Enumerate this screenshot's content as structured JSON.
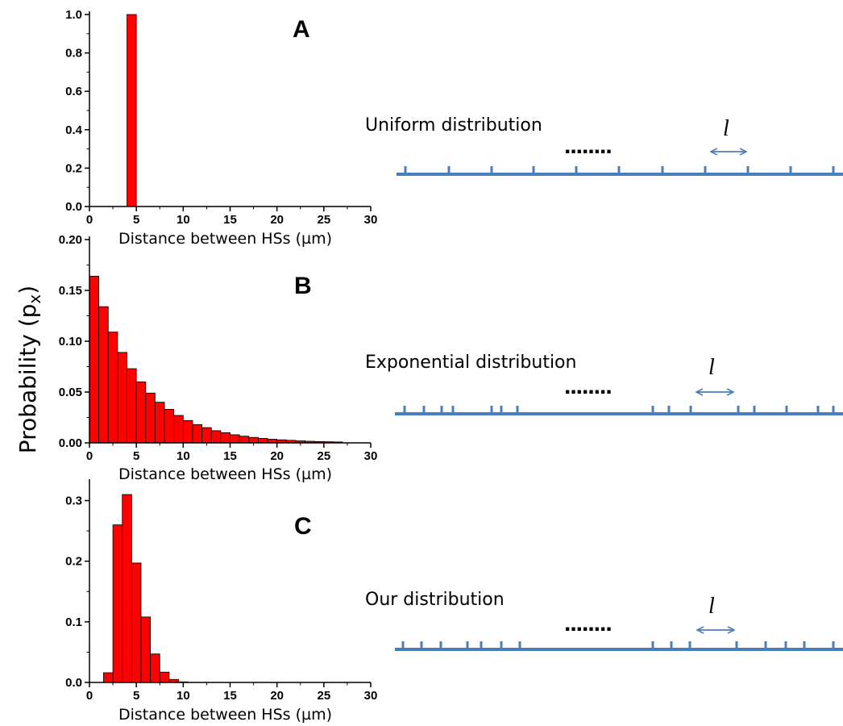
{
  "ylabel_main": "Probability (p",
  "ylabel_sub": "x",
  "ylabel_close": ")",
  "chart_data": [
    {
      "type": "bar",
      "panel": "A",
      "xlabel": "Distance between HSs (µm)",
      "xlim": [
        0,
        30
      ],
      "ylim": [
        0,
        1.0
      ],
      "xticks": [
        0,
        5,
        10,
        15,
        20,
        25,
        30
      ],
      "yticks": [
        0.0,
        0.2,
        0.4,
        0.6,
        0.8,
        1.0
      ],
      "ytick_labels": [
        "0.0",
        "0.2",
        "0.4",
        "0.6",
        "0.8",
        "1.0"
      ],
      "bin_width": 1,
      "bins": [
        {
          "x": 4.5,
          "y": 1.0
        }
      ]
    },
    {
      "type": "bar",
      "panel": "B",
      "xlabel": "Distance between HSs (µm)",
      "xlim": [
        0,
        30
      ],
      "ylim": [
        0,
        0.2
      ],
      "xticks": [
        0,
        5,
        10,
        15,
        20,
        25,
        30
      ],
      "yticks": [
        0.0,
        0.05,
        0.1,
        0.15,
        0.2
      ],
      "ytick_labels": [
        "0.00",
        "0.05",
        "0.10",
        "0.15",
        "0.20"
      ],
      "bin_width": 1,
      "bins": [
        {
          "x": 0.5,
          "y": 0.164
        },
        {
          "x": 1.5,
          "y": 0.134
        },
        {
          "x": 2.5,
          "y": 0.109
        },
        {
          "x": 3.5,
          "y": 0.089
        },
        {
          "x": 4.5,
          "y": 0.073
        },
        {
          "x": 5.5,
          "y": 0.06
        },
        {
          "x": 6.5,
          "y": 0.049
        },
        {
          "x": 7.5,
          "y": 0.04
        },
        {
          "x": 8.5,
          "y": 0.033
        },
        {
          "x": 9.5,
          "y": 0.027
        },
        {
          "x": 10.5,
          "y": 0.022
        },
        {
          "x": 11.5,
          "y": 0.018
        },
        {
          "x": 12.5,
          "y": 0.015
        },
        {
          "x": 13.5,
          "y": 0.012
        },
        {
          "x": 14.5,
          "y": 0.01
        },
        {
          "x": 15.5,
          "y": 0.008
        },
        {
          "x": 16.5,
          "y": 0.0066
        },
        {
          "x": 17.5,
          "y": 0.0054
        },
        {
          "x": 18.5,
          "y": 0.0044
        },
        {
          "x": 19.5,
          "y": 0.0036
        },
        {
          "x": 20.5,
          "y": 0.003
        },
        {
          "x": 21.5,
          "y": 0.0025
        },
        {
          "x": 22.5,
          "y": 0.002
        },
        {
          "x": 23.5,
          "y": 0.0016
        },
        {
          "x": 24.5,
          "y": 0.0013
        },
        {
          "x": 25.5,
          "y": 0.0011
        },
        {
          "x": 26.5,
          "y": 0.0009
        }
      ]
    },
    {
      "type": "bar",
      "panel": "C",
      "xlabel": "Distance between HSs (µm)",
      "xlim": [
        0,
        30
      ],
      "ylim": [
        0,
        0.33
      ],
      "xticks": [
        0,
        5,
        10,
        15,
        20,
        25,
        30
      ],
      "yticks": [
        0.0,
        0.1,
        0.2,
        0.3
      ],
      "ytick_labels": [
        "0.0",
        "0.1",
        "0.2",
        "0.3"
      ],
      "bin_width": 1,
      "bins": [
        {
          "x": 2.0,
          "y": 0.016
        },
        {
          "x": 3.0,
          "y": 0.26
        },
        {
          "x": 4.0,
          "y": 0.31
        },
        {
          "x": 5.0,
          "y": 0.197
        },
        {
          "x": 6.0,
          "y": 0.108
        },
        {
          "x": 7.0,
          "y": 0.047
        },
        {
          "x": 8.0,
          "y": 0.017
        },
        {
          "x": 9.0,
          "y": 0.005
        },
        {
          "x": 10.0,
          "y": 0.001
        }
      ]
    }
  ],
  "diagrams": [
    {
      "title": "Uniform distribution",
      "ellipsis": "........",
      "length_symbol": "l"
    },
    {
      "title": "Exponential distribution",
      "ellipsis": "........",
      "length_symbol": "l"
    },
    {
      "title": "Our distribution",
      "ellipsis": "........",
      "length_symbol": "l"
    }
  ]
}
